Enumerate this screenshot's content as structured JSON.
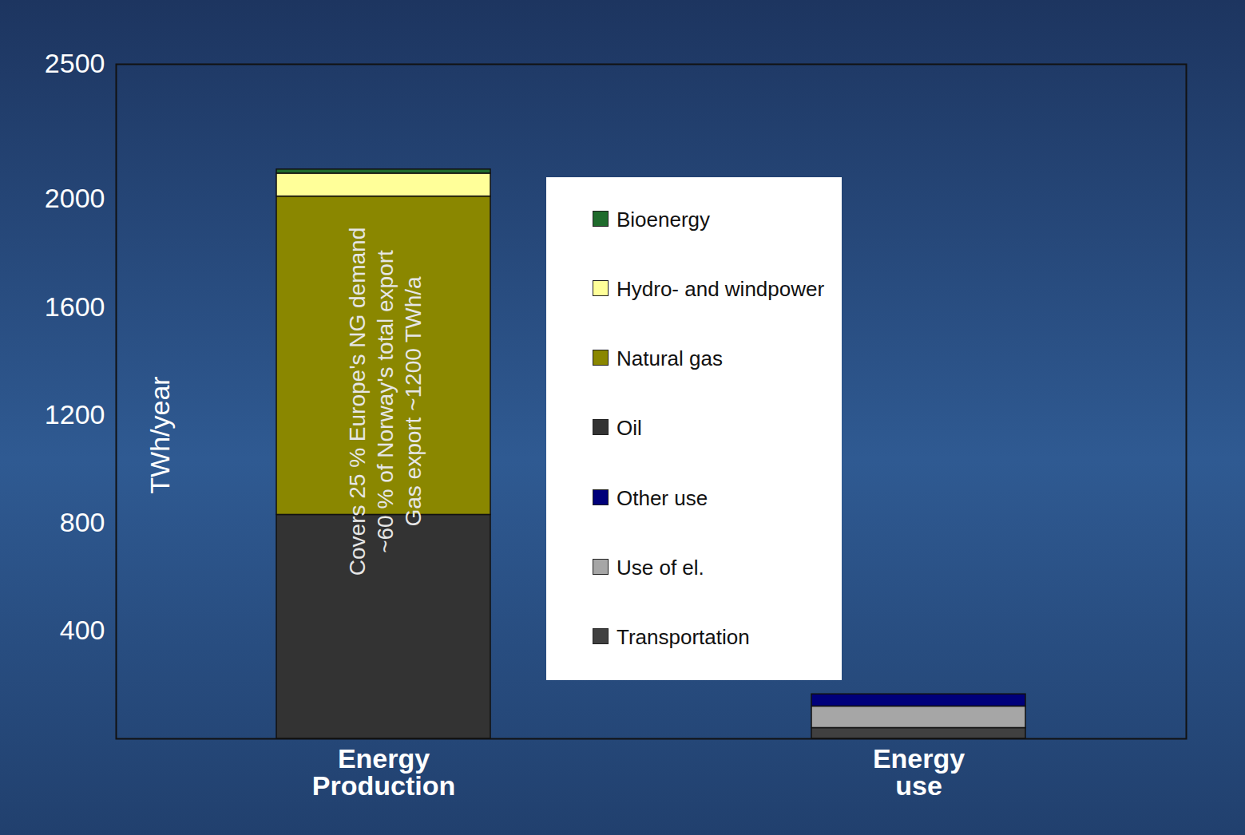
{
  "chart_data": {
    "type": "bar",
    "stacked": true,
    "categories": [
      "Energy Production",
      "Energy use"
    ],
    "ylabel": "TWh/year",
    "ylim": [
      0,
      2500
    ],
    "yticks": [
      400,
      800,
      1200,
      1600,
      2000,
      2500
    ],
    "legend": "center",
    "annotations": [
      "Covers 25 % Europe's NG demand",
      "~60 % of Norway's total export",
      "Gas export ~1200 TWh/a"
    ],
    "series": [
      {
        "name": "Bioenergy",
        "color": "#1f6b2c",
        "values": [
          15,
          null
        ]
      },
      {
        "name": "Hydro- and windpower",
        "color": "#ffff99",
        "values": [
          85,
          null
        ]
      },
      {
        "name": "Natural gas",
        "color": "#8a8700",
        "values": [
          1180,
          null
        ]
      },
      {
        "name": "Oil",
        "color": "#333333",
        "values": [
          830,
          null
        ]
      },
      {
        "name": "Other use",
        "color": "#00007a",
        "values": [
          null,
          45
        ]
      },
      {
        "name": "Use of el.",
        "color": "#a6a6a6",
        "values": [
          null,
          80
        ]
      },
      {
        "name": "Transportation",
        "color": "#404040",
        "values": [
          null,
          40
        ]
      }
    ]
  }
}
